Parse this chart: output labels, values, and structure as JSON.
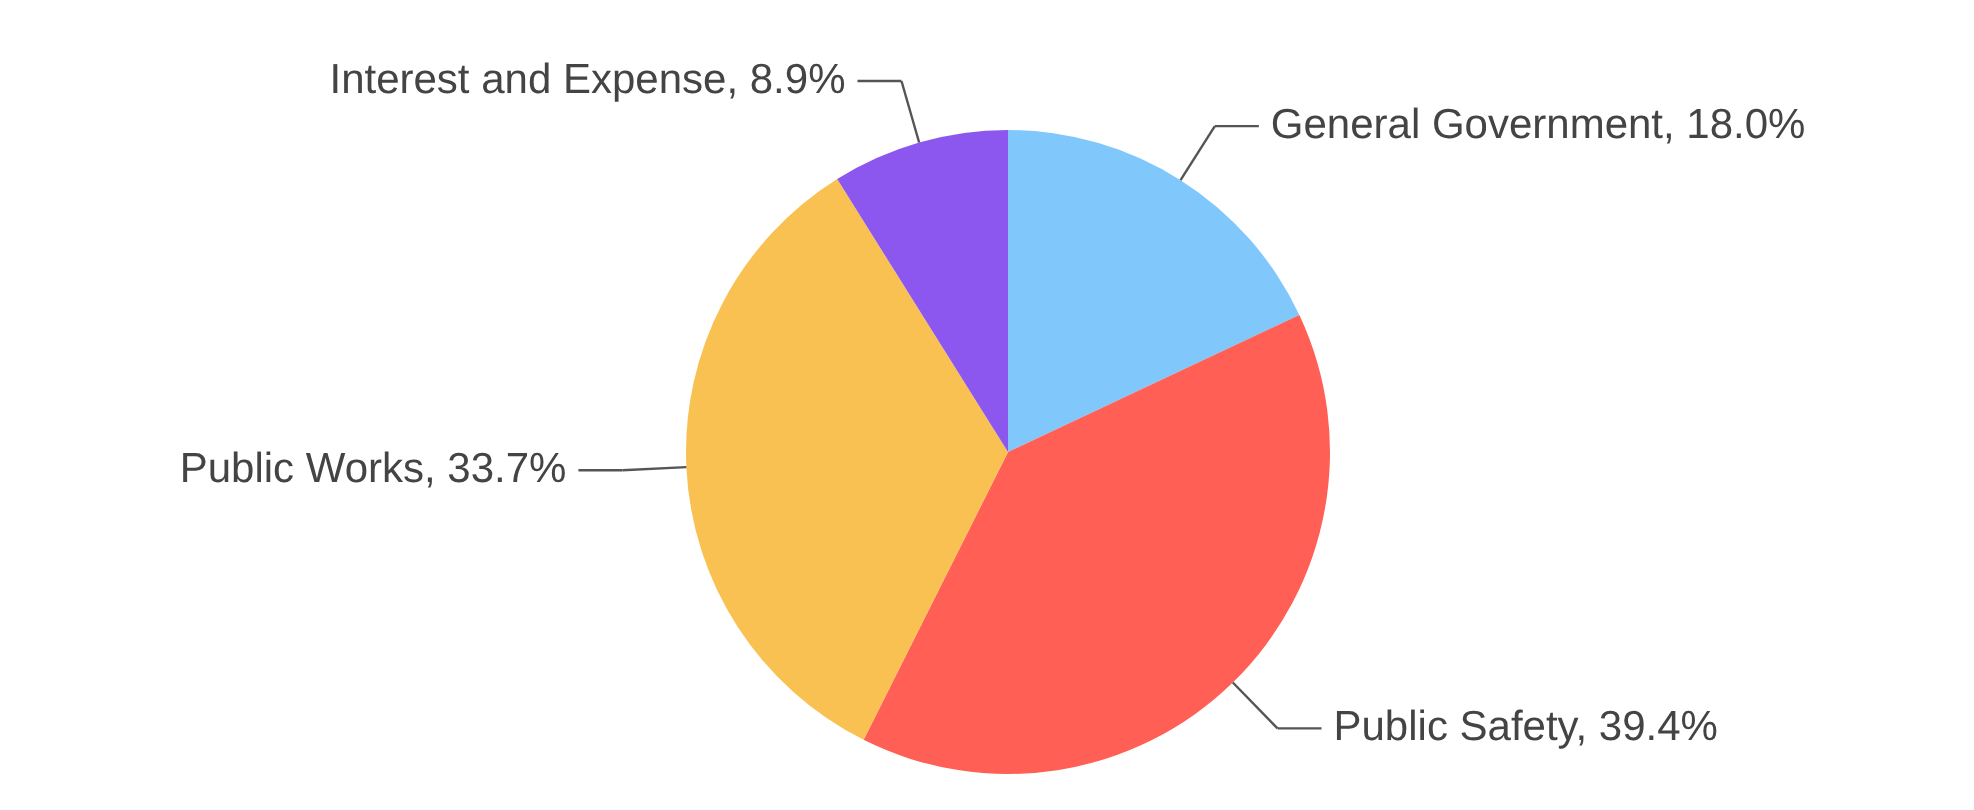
{
  "chart_data": {
    "type": "pie",
    "categories": [
      "General Government",
      "Public Safety",
      "Public Works",
      "Interest and Expense"
    ],
    "values": [
      18.0,
      39.4,
      33.7,
      8.9
    ],
    "colors": [
      "#80c8fc",
      "#ff5f55",
      "#f9c152",
      "#8c57ee"
    ],
    "value_labels": [
      "18.0%",
      "39.4%",
      "33.7%",
      "8.9%"
    ]
  }
}
